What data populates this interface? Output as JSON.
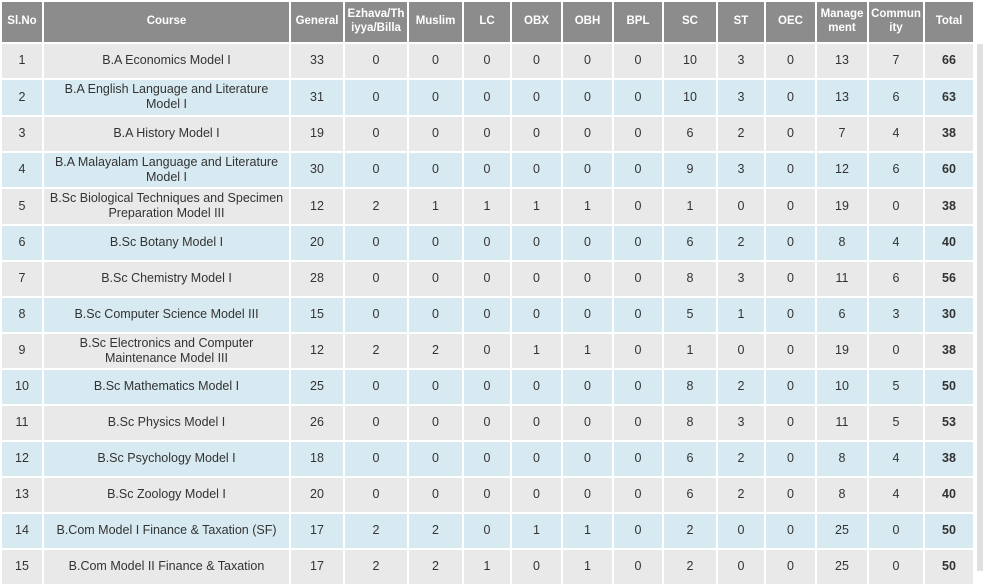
{
  "colors": {
    "header_bg": "#8c8c8c",
    "header_text": "#ffffff",
    "row_gray_bg": "#e9e9e9",
    "row_blue_bg": "#d7eaf1",
    "cell_text": "#333333",
    "total_text": "#1f1f1f",
    "grid_gap": "#ffffff",
    "scrollbar": "#e0e0e0"
  },
  "table": {
    "columns": [
      "Sl.No",
      "Course",
      "General",
      "Ezhava/Thiyya/Billa",
      "Muslim",
      "LC",
      "OBX",
      "OBH",
      "BPL",
      "SC",
      "ST",
      "OEC",
      "Management",
      "Community",
      "Total"
    ],
    "rows": [
      {
        "sl_no": "1",
        "course": "B.A Economics Model I",
        "values": [
          "33",
          "0",
          "0",
          "0",
          "0",
          "0",
          "0",
          "10",
          "3",
          "0",
          "13",
          "7"
        ],
        "total": "66"
      },
      {
        "sl_no": "2",
        "course": "B.A English Language and Literature Model I",
        "values": [
          "31",
          "0",
          "0",
          "0",
          "0",
          "0",
          "0",
          "10",
          "3",
          "0",
          "13",
          "6"
        ],
        "total": "63"
      },
      {
        "sl_no": "3",
        "course": "B.A History Model I",
        "values": [
          "19",
          "0",
          "0",
          "0",
          "0",
          "0",
          "0",
          "6",
          "2",
          "0",
          "7",
          "4"
        ],
        "total": "38"
      },
      {
        "sl_no": "4",
        "course": "B.A Malayalam Language and Literature Model I",
        "values": [
          "30",
          "0",
          "0",
          "0",
          "0",
          "0",
          "0",
          "9",
          "3",
          "0",
          "12",
          "6"
        ],
        "total": "60"
      },
      {
        "sl_no": "5",
        "course": "B.Sc Biological Techniques and Specimen Preparation Model III",
        "values": [
          "12",
          "2",
          "1",
          "1",
          "1",
          "1",
          "0",
          "1",
          "0",
          "0",
          "19",
          "0"
        ],
        "total": "38"
      },
      {
        "sl_no": "6",
        "course": "B.Sc Botany Model I",
        "values": [
          "20",
          "0",
          "0",
          "0",
          "0",
          "0",
          "0",
          "6",
          "2",
          "0",
          "8",
          "4"
        ],
        "total": "40"
      },
      {
        "sl_no": "7",
        "course": "B.Sc Chemistry Model I",
        "values": [
          "28",
          "0",
          "0",
          "0",
          "0",
          "0",
          "0",
          "8",
          "3",
          "0",
          "11",
          "6"
        ],
        "total": "56"
      },
      {
        "sl_no": "8",
        "course": "B.Sc Computer Science Model III",
        "values": [
          "15",
          "0",
          "0",
          "0",
          "0",
          "0",
          "0",
          "5",
          "1",
          "0",
          "6",
          "3"
        ],
        "total": "30"
      },
      {
        "sl_no": "9",
        "course": "B.Sc Electronics and Computer Maintenance Model III",
        "values": [
          "12",
          "2",
          "2",
          "0",
          "1",
          "1",
          "0",
          "1",
          "0",
          "0",
          "19",
          "0"
        ],
        "total": "38"
      },
      {
        "sl_no": "10",
        "course": "B.Sc Mathematics Model I",
        "values": [
          "25",
          "0",
          "0",
          "0",
          "0",
          "0",
          "0",
          "8",
          "2",
          "0",
          "10",
          "5"
        ],
        "total": "50"
      },
      {
        "sl_no": "11",
        "course": "B.Sc Physics Model I",
        "values": [
          "26",
          "0",
          "0",
          "0",
          "0",
          "0",
          "0",
          "8",
          "3",
          "0",
          "11",
          "5"
        ],
        "total": "53"
      },
      {
        "sl_no": "12",
        "course": "B.Sc Psychology Model I",
        "values": [
          "18",
          "0",
          "0",
          "0",
          "0",
          "0",
          "0",
          "6",
          "2",
          "0",
          "8",
          "4"
        ],
        "total": "38"
      },
      {
        "sl_no": "13",
        "course": "B.Sc Zoology Model I",
        "values": [
          "20",
          "0",
          "0",
          "0",
          "0",
          "0",
          "0",
          "6",
          "2",
          "0",
          "8",
          "4"
        ],
        "total": "40"
      },
      {
        "sl_no": "14",
        "course": "B.Com Model I Finance & Taxation (SF)",
        "values": [
          "17",
          "2",
          "2",
          "0",
          "1",
          "1",
          "0",
          "2",
          "0",
          "0",
          "25",
          "0"
        ],
        "total": "50"
      },
      {
        "sl_no": "15",
        "course": "B.Com Model II Finance & Taxation",
        "values": [
          "17",
          "2",
          "2",
          "1",
          "0",
          "1",
          "0",
          "2",
          "0",
          "0",
          "25",
          "0"
        ],
        "total": "50"
      }
    ]
  }
}
